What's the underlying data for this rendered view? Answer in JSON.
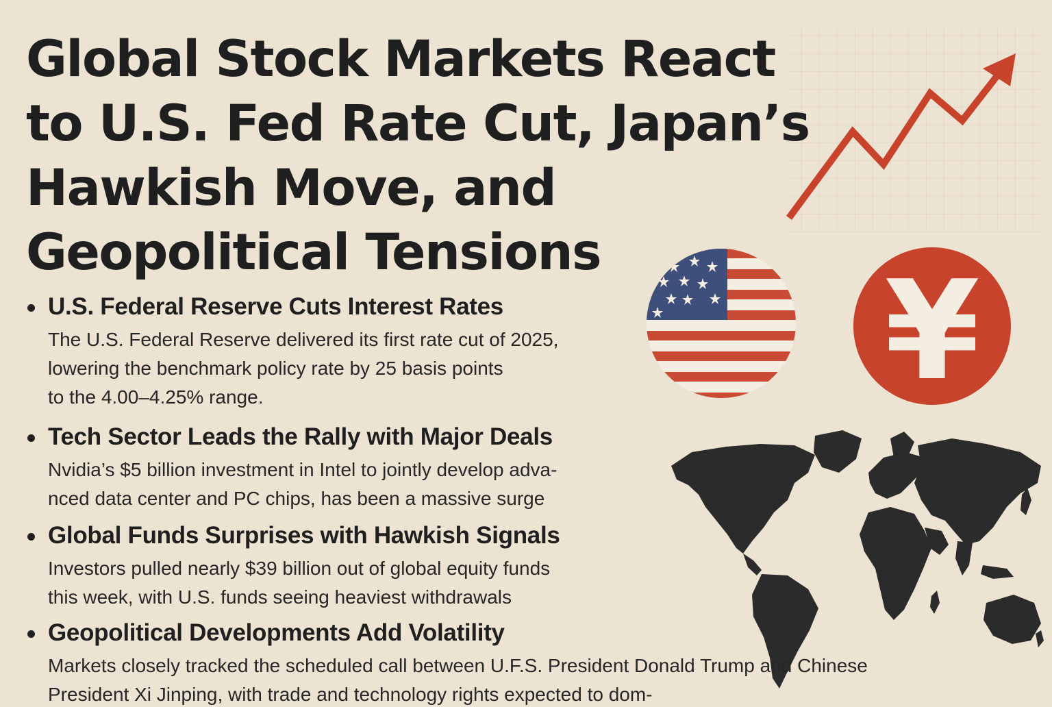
{
  "headline": {
    "lines": [
      "Global Stock Markets React",
      "to U.S. Fed Rate Cut, Japan’s",
      "Hawkish Move, and",
      "Geopolitical Tensions"
    ]
  },
  "bullets": [
    {
      "title": "U.S. Federal Reserve Cuts Interest Rates",
      "lines": [
        "The U.S. Federal Reserve delivered its first rate cut of 2025,",
        "lowering the benchmark policy rate by 25 basis points",
        "to the 4.00–4.25% range."
      ]
    },
    {
      "title": "Tech Sector Leads the Rally with Major Deals",
      "lines": [
        "Nvidia’s $5 billion investment in Intel to jointly develop adva-",
        "nced data center and PC chips, has been a massive surge"
      ]
    },
    {
      "title": "Global Funds Surprises with Hawkish Signals",
      "lines": [
        "Investors pulled nearly $39 billion out of global equity funds",
        "this week, with U.S. funds seeing heaviest withdrawals"
      ]
    },
    {
      "title": "Geopolitical Developments Add Volatility",
      "lines": [
        "Markets closely tracked the scheduled call between U.F.S. President Donald Trump and Chinese",
        "President Xi Jinping, with trade and technology rights expected to dom-"
      ]
    }
  ],
  "illustrations": {
    "trend_arrow_icon": "trend-up-arrow-icon",
    "us_flag_icon": "us-flag-icon",
    "yen_icon": "yen-coin-icon",
    "yen_symbol": "¥",
    "world_map_icon": "world-map-icon",
    "colors": {
      "background": "#ede3d3",
      "accent_red": "#c8432b",
      "flag_blue": "#3d4f7a",
      "flag_red": "#c94a35",
      "map_dark": "#2b2b2b",
      "text": "#1f1f1f"
    }
  }
}
